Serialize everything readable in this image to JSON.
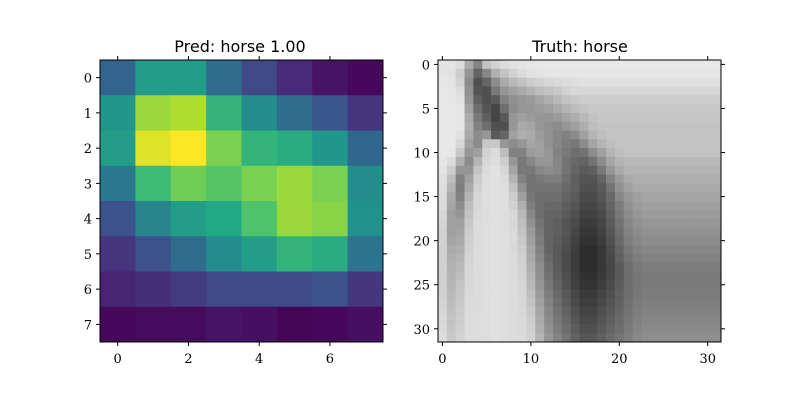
{
  "chart_data": [
    {
      "type": "heatmap",
      "title": "Pred: horse 1.00",
      "xlabel": "",
      "ylabel": "",
      "colormap": "viridis",
      "vmin": 0,
      "vmax": 1,
      "xlim": [
        -0.5,
        7.5
      ],
      "ylim": [
        7.5,
        -0.5
      ],
      "xticks": [
        0,
        2,
        4,
        6
      ],
      "yticks": [
        0,
        1,
        2,
        3,
        4,
        5,
        6,
        7
      ],
      "grid": false,
      "values": [
        [
          0.32,
          0.55,
          0.55,
          0.35,
          0.22,
          0.12,
          0.05,
          0.02
        ],
        [
          0.52,
          0.85,
          0.88,
          0.65,
          0.48,
          0.35,
          0.27,
          0.15
        ],
        [
          0.55,
          0.95,
          1.0,
          0.8,
          0.65,
          0.62,
          0.52,
          0.33
        ],
        [
          0.4,
          0.68,
          0.78,
          0.73,
          0.8,
          0.85,
          0.8,
          0.48
        ],
        [
          0.25,
          0.45,
          0.55,
          0.6,
          0.72,
          0.85,
          0.82,
          0.5
        ],
        [
          0.15,
          0.25,
          0.35,
          0.48,
          0.55,
          0.65,
          0.62,
          0.38
        ],
        [
          0.1,
          0.13,
          0.17,
          0.22,
          0.22,
          0.22,
          0.25,
          0.16
        ],
        [
          0.02,
          0.03,
          0.03,
          0.05,
          0.04,
          0.01,
          0.02,
          0.04
        ]
      ]
    },
    {
      "type": "heatmap",
      "title": "Truth: horse",
      "xlabel": "",
      "ylabel": "",
      "colormap": "gray",
      "xlim": [
        -0.5,
        31.5
      ],
      "ylim": [
        31.5,
        -0.5
      ],
      "xticks": [
        0,
        10,
        20,
        30
      ],
      "yticks": [
        0,
        5,
        10,
        15,
        20,
        25,
        30
      ],
      "grid": false,
      "values": [
        [
          228,
          228,
          220,
          170,
          130,
          195,
          210,
          220,
          225,
          228,
          230,
          232,
          232,
          232,
          232,
          232,
          232,
          232,
          232,
          232,
          232,
          232,
          232,
          232,
          232,
          232,
          232,
          232,
          232,
          232,
          232,
          232
        ],
        [
          228,
          226,
          205,
          150,
          100,
          135,
          175,
          195,
          210,
          220,
          225,
          228,
          230,
          230,
          230,
          230,
          230,
          230,
          230,
          230,
          230,
          230,
          230,
          230,
          230,
          230,
          230,
          230,
          230,
          230,
          230,
          230
        ],
        [
          230,
          228,
          210,
          140,
          80,
          100,
          140,
          170,
          185,
          195,
          205,
          210,
          215,
          218,
          220,
          222,
          225,
          225,
          225,
          225,
          225,
          225,
          225,
          225,
          225,
          225,
          225,
          225,
          225,
          225,
          225,
          225
        ],
        [
          232,
          230,
          220,
          145,
          85,
          80,
          120,
          150,
          160,
          170,
          180,
          190,
          195,
          200,
          210,
          215,
          215,
          215,
          215,
          215,
          215,
          215,
          215,
          215,
          215,
          215,
          215,
          215,
          215,
          215,
          215,
          215
        ],
        [
          232,
          230,
          225,
          150,
          95,
          80,
          90,
          130,
          145,
          150,
          155,
          165,
          175,
          185,
          195,
          200,
          205,
          205,
          205,
          205,
          205,
          205,
          205,
          205,
          205,
          205,
          205,
          205,
          205,
          205,
          205,
          205
        ],
        [
          232,
          232,
          230,
          160,
          110,
          85,
          70,
          110,
          140,
          150,
          150,
          155,
          160,
          170,
          180,
          190,
          195,
          200,
          200,
          200,
          200,
          200,
          200,
          200,
          200,
          200,
          200,
          200,
          200,
          200,
          200,
          200
        ],
        [
          232,
          232,
          230,
          170,
          120,
          95,
          70,
          90,
          150,
          160,
          155,
          150,
          150,
          155,
          165,
          175,
          185,
          195,
          198,
          198,
          198,
          198,
          198,
          198,
          198,
          198,
          198,
          198,
          198,
          198,
          198,
          198
        ],
        [
          232,
          232,
          230,
          175,
          130,
          110,
          80,
          80,
          150,
          170,
          165,
          150,
          145,
          140,
          150,
          160,
          175,
          190,
          195,
          195,
          195,
          195,
          195,
          195,
          195,
          195,
          195,
          195,
          195,
          195,
          195,
          195
        ],
        [
          232,
          232,
          225,
          170,
          140,
          150,
          90,
          100,
          160,
          175,
          170,
          155,
          145,
          135,
          130,
          140,
          160,
          180,
          190,
          195,
          195,
          195,
          195,
          195,
          195,
          195,
          195,
          195,
          195,
          195,
          195,
          195
        ],
        [
          232,
          232,
          215,
          160,
          140,
          200,
          200,
          150,
          140,
          150,
          165,
          160,
          145,
          135,
          125,
          120,
          140,
          165,
          180,
          190,
          195,
          195,
          195,
          195,
          195,
          195,
          195,
          195,
          195,
          195,
          195,
          195
        ],
        [
          232,
          230,
          200,
          150,
          160,
          210,
          220,
          190,
          130,
          130,
          155,
          160,
          150,
          130,
          120,
          110,
          115,
          140,
          160,
          180,
          190,
          195,
          195,
          195,
          195,
          195,
          195,
          195,
          195,
          195,
          195,
          195
        ],
        [
          230,
          220,
          175,
          140,
          180,
          215,
          222,
          205,
          150,
          120,
          135,
          150,
          150,
          135,
          115,
          105,
          100,
          115,
          140,
          165,
          180,
          185,
          185,
          185,
          185,
          185,
          185,
          185,
          185,
          185,
          185,
          185
        ],
        [
          228,
          205,
          150,
          150,
          195,
          220,
          225,
          215,
          165,
          120,
          120,
          135,
          140,
          135,
          115,
          100,
          90,
          95,
          120,
          150,
          170,
          180,
          180,
          180,
          180,
          180,
          180,
          180,
          180,
          180,
          180,
          180
        ],
        [
          225,
          190,
          130,
          160,
          205,
          222,
          225,
          220,
          180,
          130,
          115,
          120,
          125,
          125,
          110,
          95,
          85,
          85,
          100,
          130,
          155,
          170,
          175,
          175,
          175,
          175,
          175,
          175,
          175,
          175,
          175,
          175
        ],
        [
          222,
          180,
          125,
          170,
          210,
          222,
          225,
          222,
          195,
          145,
          115,
          115,
          115,
          115,
          105,
          95,
          80,
          80,
          90,
          115,
          145,
          160,
          170,
          170,
          170,
          170,
          170,
          170,
          170,
          170,
          170,
          170
        ],
        [
          220,
          170,
          130,
          180,
          215,
          222,
          225,
          222,
          205,
          160,
          120,
          110,
          110,
          110,
          100,
          90,
          75,
          75,
          85,
          105,
          135,
          150,
          160,
          165,
          165,
          165,
          165,
          165,
          165,
          165,
          165,
          165
        ],
        [
          218,
          165,
          140,
          190,
          215,
          222,
          225,
          222,
          210,
          175,
          125,
          110,
          105,
          105,
          95,
          85,
          70,
          70,
          80,
          100,
          125,
          145,
          155,
          160,
          160,
          160,
          160,
          160,
          160,
          160,
          160,
          160
        ],
        [
          215,
          160,
          150,
          195,
          218,
          222,
          225,
          222,
          215,
          185,
          135,
          110,
          100,
          100,
          90,
          80,
          65,
          65,
          75,
          95,
          120,
          140,
          150,
          155,
          155,
          155,
          155,
          155,
          155,
          155,
          155,
          155
        ],
        [
          212,
          160,
          160,
          200,
          220,
          222,
          225,
          222,
          215,
          190,
          145,
          115,
          100,
          95,
          85,
          75,
          60,
          60,
          70,
          90,
          115,
          135,
          145,
          150,
          150,
          150,
          150,
          150,
          150,
          150,
          150,
          150
        ],
        [
          210,
          160,
          165,
          205,
          220,
          222,
          225,
          222,
          218,
          195,
          155,
          120,
          100,
          95,
          85,
          70,
          55,
          55,
          65,
          85,
          110,
          130,
          140,
          145,
          145,
          145,
          145,
          145,
          145,
          145,
          145,
          145
        ],
        [
          210,
          165,
          170,
          208,
          220,
          222,
          225,
          222,
          218,
          200,
          160,
          125,
          100,
          92,
          80,
          65,
          50,
          50,
          60,
          80,
          105,
          125,
          135,
          140,
          140,
          140,
          140,
          140,
          140,
          140,
          140,
          140
        ],
        [
          208,
          170,
          175,
          210,
          220,
          222,
          225,
          222,
          218,
          205,
          165,
          130,
          100,
          90,
          78,
          62,
          45,
          45,
          55,
          75,
          100,
          120,
          130,
          135,
          135,
          135,
          135,
          135,
          135,
          135,
          135,
          135
        ],
        [
          208,
          175,
          180,
          212,
          220,
          222,
          225,
          222,
          220,
          208,
          170,
          135,
          105,
          90,
          75,
          60,
          45,
          45,
          55,
          72,
          95,
          115,
          125,
          130,
          130,
          130,
          130,
          130,
          130,
          130,
          130,
          130
        ],
        [
          208,
          178,
          185,
          214,
          220,
          222,
          225,
          222,
          220,
          210,
          175,
          140,
          110,
          92,
          75,
          60,
          45,
          45,
          55,
          70,
          90,
          110,
          120,
          125,
          125,
          125,
          125,
          125,
          125,
          125,
          125,
          125
        ],
        [
          208,
          180,
          190,
          215,
          220,
          222,
          225,
          222,
          220,
          212,
          180,
          145,
          115,
          95,
          78,
          62,
          48,
          48,
          58,
          72,
          90,
          108,
          118,
          122,
          122,
          122,
          122,
          122,
          122,
          122,
          122,
          122
        ],
        [
          208,
          182,
          195,
          216,
          220,
          222,
          225,
          222,
          220,
          214,
          185,
          150,
          120,
          100,
          82,
          65,
          52,
          52,
          62,
          75,
          92,
          108,
          118,
          122,
          122,
          122,
          122,
          122,
          122,
          122,
          122,
          122
        ],
        [
          210,
          185,
          198,
          217,
          220,
          222,
          225,
          222,
          220,
          215,
          190,
          155,
          125,
          105,
          88,
          70,
          58,
          58,
          68,
          80,
          95,
          110,
          120,
          124,
          124,
          124,
          124,
          124,
          124,
          124,
          124,
          124
        ],
        [
          212,
          188,
          200,
          218,
          220,
          222,
          225,
          222,
          220,
          216,
          195,
          160,
          130,
          110,
          92,
          75,
          62,
          62,
          72,
          84,
          98,
          112,
          122,
          126,
          126,
          126,
          126,
          126,
          126,
          126,
          126,
          126
        ],
        [
          214,
          192,
          203,
          219,
          220,
          222,
          225,
          222,
          220,
          217,
          200,
          165,
          135,
          115,
          98,
          80,
          68,
          68,
          78,
          88,
          102,
          115,
          125,
          130,
          130,
          130,
          130,
          130,
          130,
          130,
          130,
          130
        ],
        [
          216,
          195,
          205,
          220,
          221,
          222,
          225,
          222,
          220,
          218,
          205,
          170,
          140,
          120,
          104,
          86,
          74,
          74,
          84,
          94,
          106,
          118,
          128,
          134,
          134,
          134,
          134,
          134,
          134,
          134,
          134,
          134
        ],
        [
          218,
          198,
          208,
          220,
          221,
          222,
          225,
          222,
          220,
          218,
          208,
          175,
          145,
          125,
          110,
          92,
          80,
          80,
          90,
          100,
          110,
          122,
          132,
          138,
          138,
          138,
          138,
          138,
          138,
          138,
          138,
          138
        ],
        [
          220,
          200,
          210,
          221,
          221,
          222,
          225,
          222,
          220,
          219,
          210,
          180,
          150,
          130,
          115,
          98,
          86,
          86,
          96,
          106,
          116,
          126,
          136,
          142,
          142,
          142,
          142,
          142,
          142,
          142,
          142,
          142
        ]
      ]
    }
  ]
}
